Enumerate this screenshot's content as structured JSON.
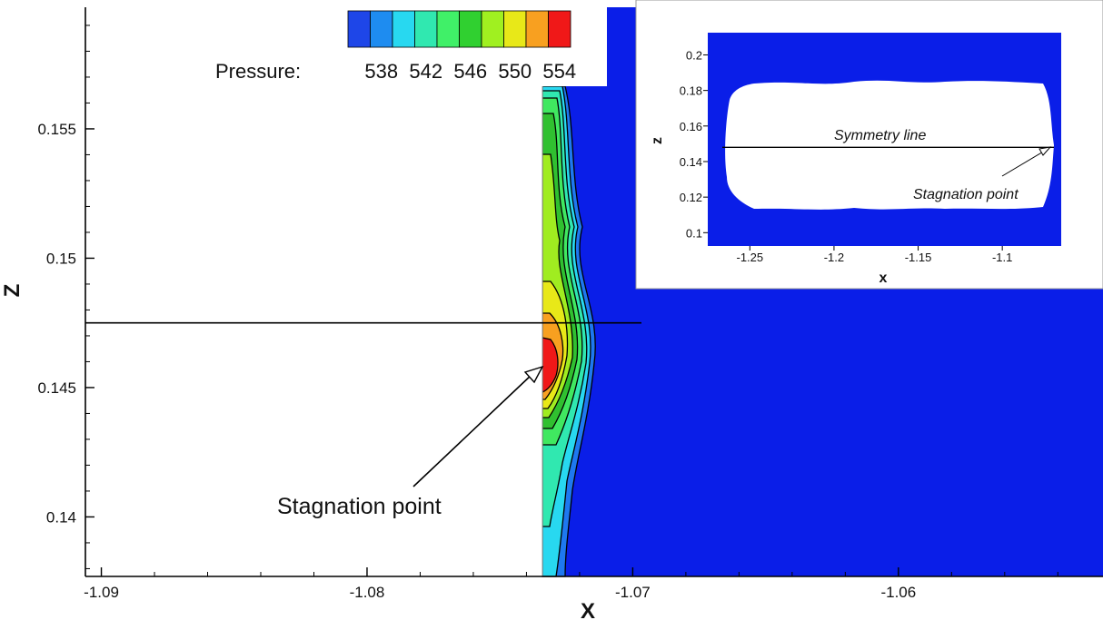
{
  "chart_data": [
    {
      "type": "contour",
      "title": "",
      "xlabel": "X",
      "ylabel": "Z",
      "xlim": [
        -1.0906,
        -1.0523
      ],
      "ylim": [
        0.1377,
        0.1597
      ],
      "xticks": [
        -1.09,
        -1.08,
        -1.07,
        -1.06
      ],
      "xtick_labels": [
        "-1.09",
        "-1.08",
        "-1.07",
        "-1.06"
      ],
      "yticks": [
        0.14,
        0.145,
        0.15,
        0.155
      ],
      "ytick_labels": [
        "0.14",
        "0.145",
        "0.15",
        "0.155"
      ],
      "grid": false,
      "legend": {
        "title": "Pressure:",
        "position": "top",
        "levels": [
          538,
          542,
          546,
          550,
          554
        ],
        "level_labels": [
          "538",
          "542",
          "546",
          "550",
          "554"
        ],
        "colors": [
          "#1e46e8",
          "#1e8cf0",
          "#28d8f0",
          "#30e8b0",
          "#40f068",
          "#30d030",
          "#a0f020",
          "#e8e818",
          "#f8a020",
          "#f01818"
        ]
      },
      "symmetry_line_z": 0.1475,
      "stagnation_point": {
        "x": -1.0725,
        "z": 0.146
      },
      "background_color": "#0a1ee8",
      "annotations": [
        {
          "text": "Stagnation point",
          "x": -1.0813,
          "z": 0.1405
        }
      ]
    },
    {
      "type": "contour",
      "title": "",
      "xlabel": "x",
      "ylabel": "z",
      "xlim": [
        -1.275,
        -1.065
      ],
      "ylim": [
        0.0925,
        0.2125
      ],
      "xticks": [
        -1.25,
        -1.2,
        -1.15,
        -1.1
      ],
      "xtick_labels": [
        "-1.25",
        "-1.2",
        "-1.15",
        "-1.1"
      ],
      "yticks": [
        0.1,
        0.12,
        0.14,
        0.16,
        0.18,
        0.2
      ],
      "ytick_labels": [
        "0.1",
        "0.12",
        "0.14",
        "0.16",
        "0.18",
        "0.2"
      ],
      "symmetry_line_z": 0.148,
      "annotations": [
        {
          "text": "Symmetry line",
          "x": -1.18,
          "z": 0.155
        },
        {
          "text": "Stagnation point",
          "x": -1.075,
          "z": 0.122
        }
      ]
    }
  ]
}
